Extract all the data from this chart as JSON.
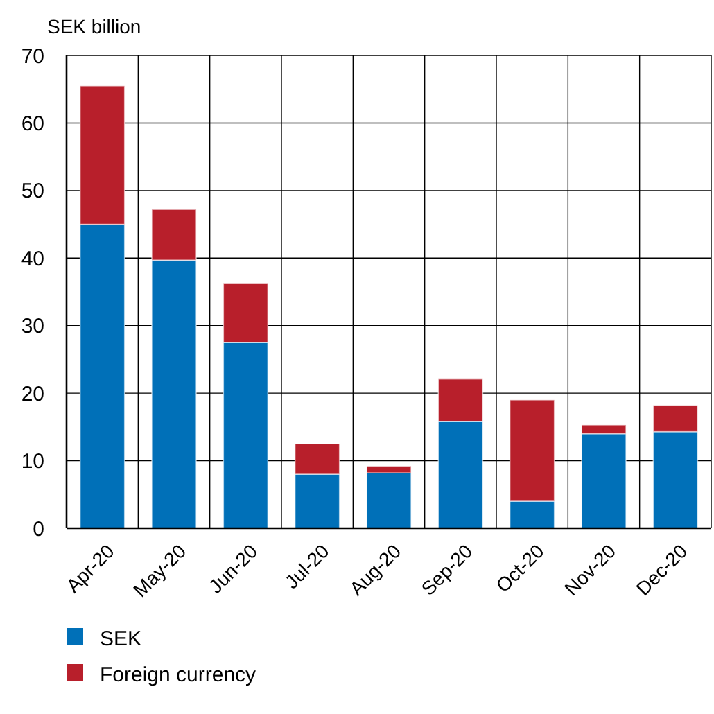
{
  "chart_data": {
    "type": "bar",
    "ylabel": "SEK billion",
    "categories": [
      "Apr-20",
      "May-20",
      "Jun-20",
      "Jul-20",
      "Aug-20",
      "Sep-20",
      "Oct-20",
      "Nov-20",
      "Dec-20"
    ],
    "stacked": true,
    "series": [
      {
        "name": "SEK",
        "color": "#0070b8",
        "values": [
          45,
          39.7,
          27.5,
          8,
          8.2,
          15.8,
          4,
          14,
          14.3
        ]
      },
      {
        "name": "Foreign currency",
        "color": "#b81f2b",
        "values": [
          20.5,
          7.5,
          8.8,
          4.5,
          1,
          6.3,
          15,
          1.3,
          3.9
        ]
      }
    ],
    "ylim": [
      0,
      70
    ],
    "yticks": [
      0,
      10,
      20,
      30,
      40,
      50,
      60,
      70
    ],
    "grid": true,
    "legend": "bottom left"
  }
}
